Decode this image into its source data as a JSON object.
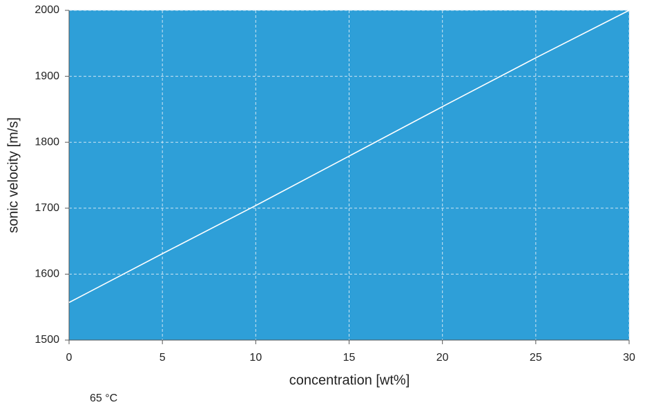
{
  "chart_data": {
    "type": "line",
    "x_label": "concentration [wt%]",
    "y_label": "sonic velocity [m/s]",
    "annotation": "65 °C",
    "x": [
      0,
      5,
      10,
      15,
      20,
      25,
      30
    ],
    "series": [
      {
        "color": "#ffffff",
        "values": [
          1557,
          1631,
          1704,
          1779,
          1854,
          1928,
          2000
        ]
      }
    ],
    "xlim": [
      0,
      30
    ],
    "xticks": [
      0,
      5,
      10,
      15,
      20,
      25,
      30
    ],
    "ylim": [
      1500,
      2000
    ],
    "yticks": [
      1500,
      1600,
      1700,
      1800,
      1900,
      2000
    ],
    "grid": true,
    "background": "#2e9fd8"
  }
}
